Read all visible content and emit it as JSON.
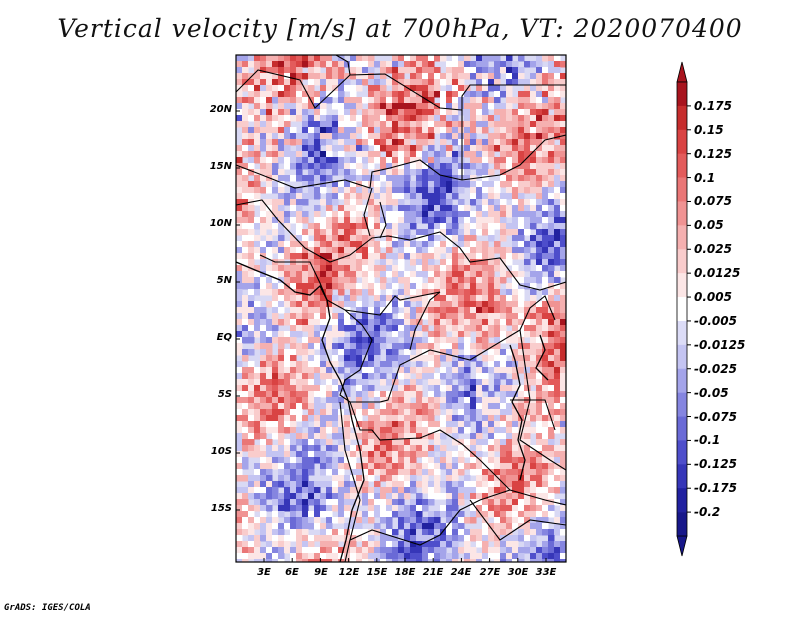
{
  "title": "Vertical velocity [m/s] at 700hPa, VT: 2020070400",
  "latitude_labels": [
    "20N",
    "15N",
    "10N",
    "5N",
    "EQ",
    "5S",
    "10S",
    "15S"
  ],
  "longitude_labels": [
    "3E",
    "6E",
    "9E",
    "12E",
    "15E",
    "18E",
    "21E",
    "24E",
    "27E",
    "30E",
    "33E"
  ],
  "colorbar": {
    "levels": [
      "0.175",
      "0.15",
      "0.125",
      "0.1",
      "0.075",
      "0.05",
      "0.025",
      "0.0125",
      "0.005",
      "-0.005",
      "-0.0125",
      "-0.025",
      "-0.05",
      "-0.075",
      "-0.1",
      "-0.125",
      "-0.175",
      "-0.2"
    ],
    "colors": [
      "#a8141e",
      "#c62d2d",
      "#d94343",
      "#e35b5b",
      "#ea7676",
      "#f09393",
      "#f5b0b0",
      "#f9cccc",
      "#fce6e6",
      "#ffffff",
      "#dcdcf7",
      "#c4c4f2",
      "#a4a4ea",
      "#8585e0",
      "#6a6ad6",
      "#4e4ecb",
      "#3636b8",
      "#2121a0",
      "#17178a"
    ]
  },
  "footer": "GrADS: IGES/COLA"
}
